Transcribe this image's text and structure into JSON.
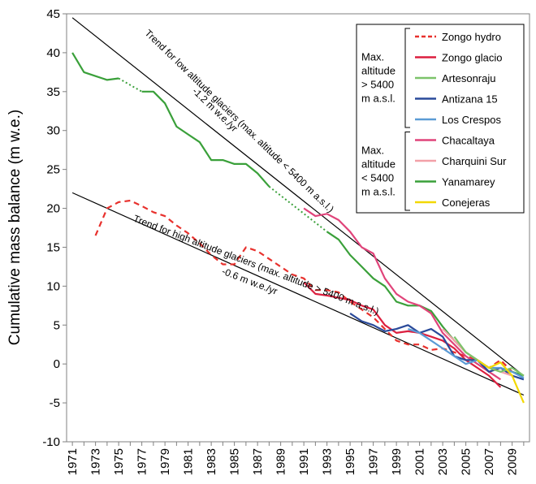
{
  "chart_data": {
    "type": "line",
    "title": "",
    "xlabel": "",
    "ylabel": "Cumulative mass balance (m w.e.)",
    "xlim": [
      1971,
      2010
    ],
    "ylim": [
      -10,
      45
    ],
    "yticks": [
      -10,
      -5,
      0,
      5,
      10,
      15,
      20,
      25,
      30,
      35,
      40,
      45
    ],
    "xticks": [
      "1971",
      "1973",
      "1975",
      "1977",
      "1979",
      "1981",
      "1983",
      "1985",
      "1987",
      "1989",
      "1991",
      "1993",
      "1995",
      "1997",
      "1999",
      "2001",
      "2003",
      "2005",
      "2007",
      "2009"
    ],
    "grid": false,
    "legend_position": "top-right",
    "legend_groups": [
      {
        "label_lines": [
          "Max.",
          "altitude",
          "> 5400",
          "m a.s.l."
        ],
        "items": [
          "Zongo hydro",
          "Zongo glacio",
          "Artesonraju",
          "Antizana 15",
          "Los Crespos"
        ]
      },
      {
        "label_lines": [
          "Max.",
          "altitude",
          "< 5400",
          "m a.s.l."
        ],
        "items": [
          "Chacaltaya",
          "Charquini Sur",
          "Yanamarey",
          "Conejeras"
        ]
      }
    ],
    "series": [
      {
        "name": "Zongo hydro",
        "color": "#e8312d",
        "dash": "dashed",
        "x": [
          1973,
          1974,
          1975,
          1976,
          1977,
          1978,
          1979,
          1980,
          1981,
          1982,
          1983,
          1984,
          1985,
          1986,
          1987,
          1988,
          1989,
          1990,
          1991,
          1992,
          1993,
          1994,
          1995,
          1996,
          1997,
          1998,
          1999,
          2000,
          2001,
          2002,
          2003,
          2004,
          2005,
          2006,
          2007,
          2008,
          2009,
          2010
        ],
        "y": [
          16.5,
          20.0,
          20.8,
          21.0,
          20.3,
          19.5,
          19.0,
          17.8,
          16.8,
          15.5,
          14.0,
          12.8,
          12.8,
          15.0,
          14.5,
          13.5,
          12.5,
          11.5,
          11.0,
          9.5,
          9.5,
          9.2,
          8.0,
          7.0,
          6.0,
          4.5,
          3.0,
          2.5,
          2.5,
          1.8,
          2.0,
          1.5,
          1.0,
          0.5,
          -0.5,
          0.5,
          -1.0,
          -1.5
        ]
      },
      {
        "name": "Zongo glacio",
        "color": "#dc1f3f",
        "dash": "solid",
        "x": [
          1991,
          1992,
          1993,
          1994,
          1995,
          1996,
          1997,
          1998,
          1999,
          2000,
          2001,
          2002,
          2003,
          2004,
          2005,
          2006,
          2007,
          2008
        ],
        "y": [
          10.5,
          9.0,
          8.8,
          8.5,
          8.2,
          7.5,
          7.0,
          5.0,
          4.0,
          4.2,
          4.0,
          3.5,
          3.0,
          2.0,
          0.5,
          -0.5,
          -1.5,
          -3.0
        ]
      },
      {
        "name": "Artesonraju",
        "color": "#7cc36a",
        "dash": "solid",
        "x": [
          2004,
          2005,
          2006,
          2007,
          2008,
          2009,
          2010
        ],
        "y": [
          3.5,
          1.5,
          0.5,
          -0.5,
          -1.0,
          -0.5,
          -1.5
        ]
      },
      {
        "name": "Antizana 15",
        "color": "#2a4a9a",
        "dash": "solid",
        "x": [
          1995,
          1996,
          1997,
          1998,
          1999,
          2000,
          2001,
          2002,
          2003,
          2004,
          2005,
          2006,
          2007,
          2008,
          2009,
          2010
        ],
        "y": [
          6.5,
          5.5,
          5.0,
          4.2,
          4.5,
          5.0,
          4.0,
          4.5,
          3.5,
          1.0,
          0.5,
          0.5,
          -1.0,
          -0.5,
          -1.5,
          -2.0
        ]
      },
      {
        "name": "Los Crespos",
        "color": "#5b9bd5",
        "dash": "solid",
        "x": [
          2000,
          2001,
          2002,
          2003,
          2004,
          2005,
          2006,
          2007,
          2008,
          2009,
          2010
        ],
        "y": [
          4.5,
          4.0,
          3.0,
          2.0,
          1.0,
          0.0,
          0.5,
          -0.5,
          -0.5,
          -1.0,
          -1.8
        ]
      },
      {
        "name": "Chacaltaya",
        "color": "#e0447a",
        "dash": "solid",
        "x": [
          1991,
          1992,
          1993,
          1994,
          1995,
          1996,
          1997,
          1998,
          1999,
          2000,
          2001,
          2002,
          2003,
          2004,
          2005,
          2006,
          2007,
          2008
        ],
        "y": [
          20.0,
          19.0,
          19.3,
          18.5,
          17.0,
          15.0,
          14.2,
          11.0,
          9.0,
          8.0,
          7.5,
          6.5,
          4.0,
          2.5,
          1.0,
          0.0,
          -1.0,
          -2.0
        ]
      },
      {
        "name": "Charquini Sur",
        "color": "#f2a0a8",
        "dash": "solid",
        "x": [
          2003,
          2004,
          2005,
          2006,
          2007,
          2008,
          2009
        ],
        "y": [
          4.5,
          3.0,
          1.5,
          0.5,
          -0.5,
          -1.0,
          -1.5
        ]
      },
      {
        "name": "Yanamarey",
        "color": "#3aa03a",
        "dash": "solid",
        "x": [
          1971,
          1972,
          1973,
          1974,
          1975,
          1976,
          1977,
          1978,
          1979,
          1980,
          1981,
          1982,
          1983,
          1984,
          1985,
          1986,
          1987,
          1988
        ],
        "y": [
          40.0,
          37.5,
          37.0,
          36.5,
          36.7,
          null,
          35.0,
          35.0,
          33.5,
          30.5,
          29.5,
          28.5,
          26.2,
          26.2,
          25.7,
          25.7,
          24.5,
          22.8
        ]
      },
      {
        "name": "Yanamarey",
        "color": "#3aa03a",
        "dash": "solid",
        "x": [
          1993,
          1994,
          1995,
          1996,
          1997,
          1998,
          1999,
          2000,
          2001,
          2002,
          2003,
          2004,
          2005,
          2006,
          2007,
          2008,
          2009,
          2010
        ],
        "y": [
          17.0,
          16.0,
          14.0,
          12.5,
          11.0,
          10.0,
          8.0,
          7.5,
          7.5,
          6.8,
          4.8,
          3.0,
          1.5,
          0.5,
          -1.0,
          -0.5,
          -1.0,
          -1.5
        ]
      },
      {
        "name": "Conejeras",
        "color": "#f2d800",
        "dash": "solid",
        "x": [
          2006,
          2007,
          2008,
          2009,
          2010
        ],
        "y": [
          0.5,
          -0.5,
          0.2,
          -1.5,
          -5.0
        ]
      }
    ],
    "gap_fill_dotted": [
      {
        "color": "#3aa03a",
        "x": [
          1975,
          1977
        ],
        "y": [
          36.7,
          35.0
        ]
      },
      {
        "color": "#3aa03a",
        "x": [
          1988,
          1993
        ],
        "y": [
          22.8,
          17.0
        ]
      }
    ],
    "trend_lines": [
      {
        "color": "#000000",
        "x": [
          1971,
          2010
        ],
        "y": [
          44.5,
          -1.5
        ]
      },
      {
        "color": "#000000",
        "x": [
          1971,
          2010
        ],
        "y": [
          22.0,
          -4.0
        ]
      }
    ],
    "annotations": [
      {
        "lines": [
          "Trend for low altitude glaciers (max. altitude < 5400 m a.s.l.)",
          "-1.2 m w.e./yr"
        ]
      },
      {
        "lines": [
          "Trend for high altitude glaciers (max. altitude > 5400 m a.s.l.)",
          "-0.6 m w.e./yr"
        ]
      }
    ]
  }
}
